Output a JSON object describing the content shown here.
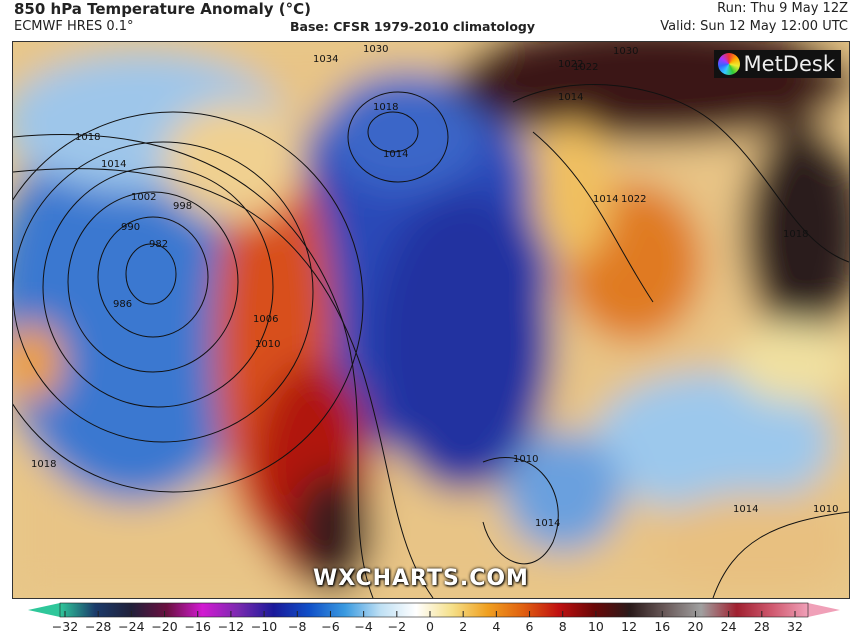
{
  "header": {
    "title": "850 hPa Temperature Anomaly (°C)",
    "model": "ECMWF HRES 0.1°",
    "base": "Base: CFSR 1979-2010 climatology",
    "run": "Run: Thu 9 May 12Z",
    "valid": "Valid: Sun 12 May 12:00 UTC"
  },
  "logo": {
    "text": "MetDesk",
    "icon": "metdesk-burst-icon"
  },
  "watermark": "WXCHARTS.COM",
  "isobar_labels": [
    "1018",
    "1014",
    "1002",
    "998",
    "990",
    "982",
    "986",
    "1006",
    "1010",
    "1018",
    "1034",
    "1030",
    "1018",
    "1014",
    "1022",
    "1014",
    "1022",
    "1014",
    "1010",
    "1014",
    "1018",
    "1014",
    "1010",
    "1030",
    "1022"
  ],
  "colorbar": {
    "labels": [
      "−32",
      "−28",
      "−24",
      "−20",
      "−16",
      "−12",
      "−10",
      "−8",
      "−6",
      "−4",
      "−2",
      "0",
      "2",
      "4",
      "6",
      "8",
      "10",
      "12",
      "16",
      "20",
      "24",
      "28",
      "32"
    ],
    "colors": [
      "#2fc79a",
      "#1a3a6a",
      "#20203a",
      "#6a1040",
      "#d21ad2",
      "#7a2ab0",
      "#1a1a9a",
      "#1050c8",
      "#3a9ae0",
      "#bfe0f4",
      "#ffffff",
      "#f5e08a",
      "#f0a020",
      "#e06010",
      "#c01010",
      "#6a0808",
      "#2a1a1a",
      "#6a5a5a",
      "#a0a0a0",
      "#a02030",
      "#d05a70",
      "#f0a0b8"
    ]
  }
}
